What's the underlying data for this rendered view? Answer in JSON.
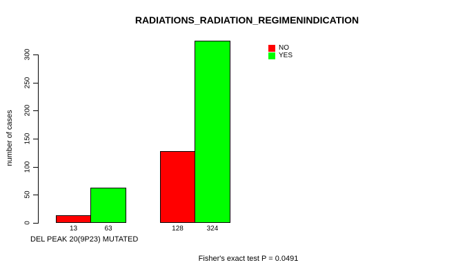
{
  "chart_data": {
    "type": "bar",
    "title": "RADIATIONS_RADIATION_REGIMENINDICATION",
    "ylabel": "number of cases",
    "xlabel": "DEL PEAK 20(9P23) MUTATED",
    "annotation": "Fisher's exact test P = 0.0491",
    "categories": [
      "",
      ""
    ],
    "series": [
      {
        "name": "NO",
        "color": "#ff0000",
        "values": [
          13,
          128
        ]
      },
      {
        "name": "YES",
        "color": "#00ff00",
        "values": [
          63,
          324
        ]
      }
    ],
    "bar_value_labels": [
      [
        "13",
        "128"
      ],
      [
        "63",
        "324"
      ]
    ],
    "yticks": [
      0,
      50,
      100,
      150,
      200,
      250,
      300
    ],
    "ylim": [
      0,
      324
    ],
    "grid": false,
    "legend_position": "top-right"
  },
  "colors": {
    "background": "#ffffff",
    "axis": "#000000",
    "bar_border": "#000000",
    "text": "#000000"
  }
}
